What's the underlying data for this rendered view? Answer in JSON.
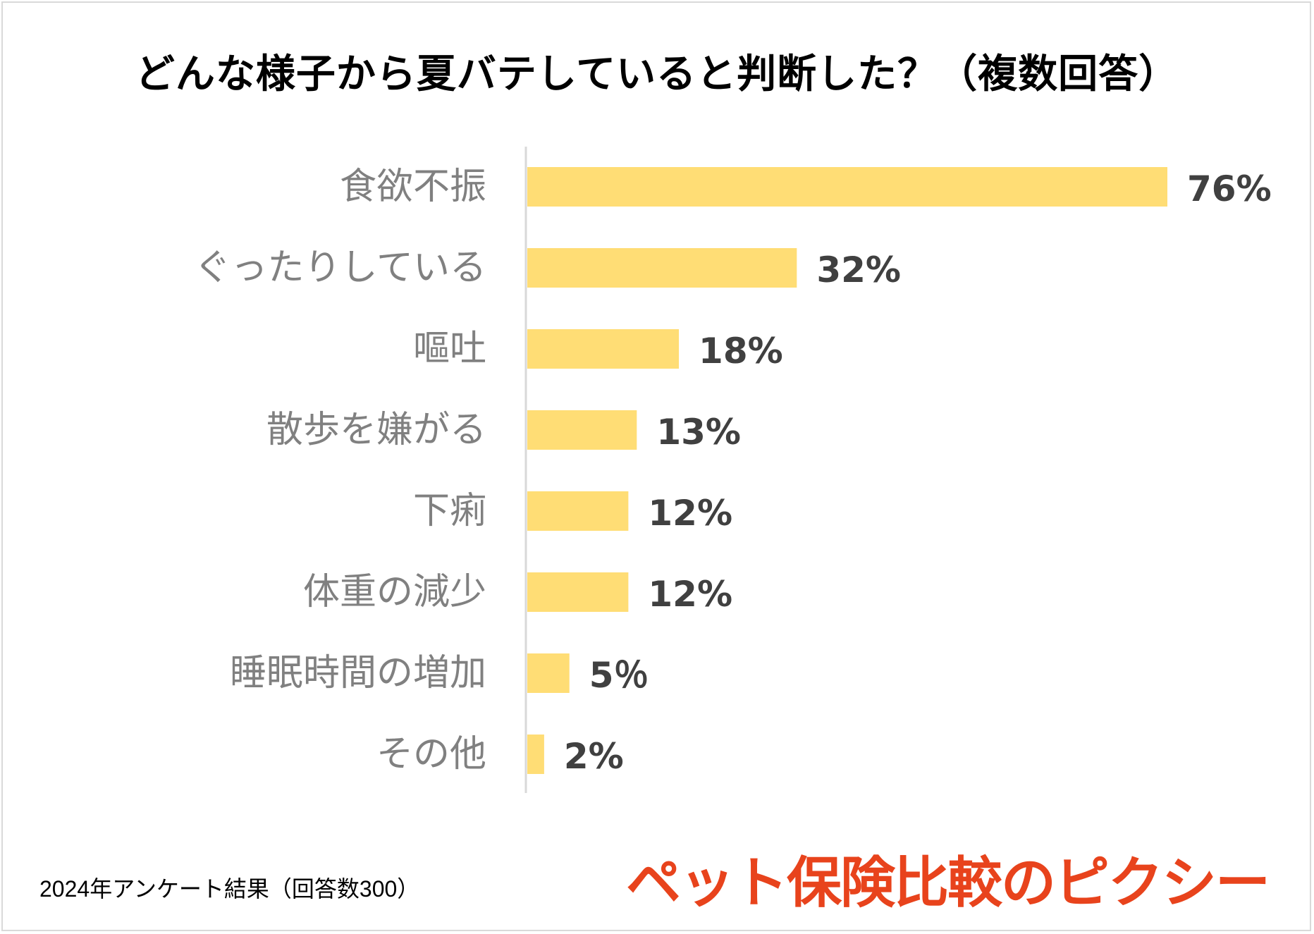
{
  "title": "どんな様子から夏バテしていると判断した？（複数回答）",
  "footer": "2024年アンケート結果（回答数300）",
  "logo": "ペット保険比較のピクシー",
  "colors": {
    "bar": "#ffdd75",
    "axis": "#d9d9d9",
    "logo": "#e8431c"
  },
  "chart_data": {
    "type": "bar",
    "orientation": "horizontal",
    "title": "どんな様子から夏バテしていると判断した？（複数回答）",
    "categories": [
      "食欲不振",
      "ぐったりしている",
      "嘔吐",
      "散歩を嫌がる",
      "下痢",
      "体重の減少",
      "睡眠時間の増加",
      "その他"
    ],
    "values": [
      76,
      32,
      18,
      13,
      12,
      12,
      5,
      2
    ],
    "value_labels": [
      "76%",
      "32%",
      "18%",
      "13%",
      "12%",
      "12%",
      "5％",
      "2%"
    ],
    "unit": "%",
    "xlim": [
      0,
      76
    ],
    "xlabel": "",
    "ylabel": "",
    "grid": false
  }
}
